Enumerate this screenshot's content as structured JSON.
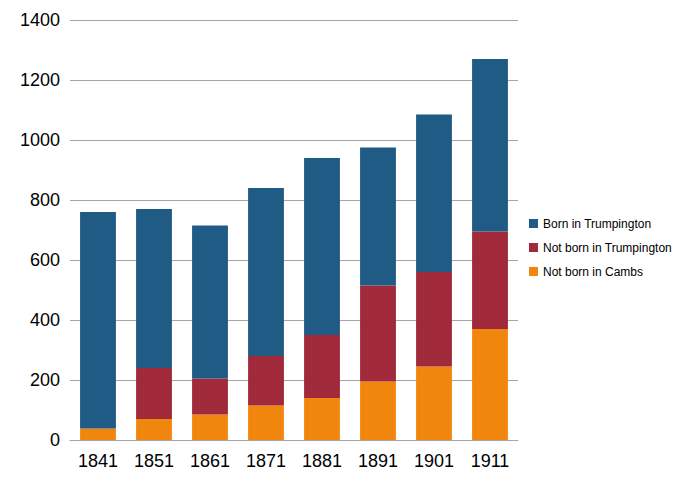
{
  "chart_data": {
    "type": "bar",
    "stacked": true,
    "grid": true,
    "legend": "right",
    "categories": [
      "1841",
      "1851",
      "1861",
      "1871",
      "1881",
      "1891",
      "1901",
      "1911"
    ],
    "series": [
      {
        "name": "Born in Trumpington",
        "color": "#1f5b84",
        "values": [
          722,
          530,
          510,
          560,
          590,
          460,
          525,
          575
        ]
      },
      {
        "name": "Not born in Trumpington",
        "color": "#a12a3a",
        "values": [
          0,
          170,
          120,
          165,
          210,
          320,
          315,
          325
        ]
      },
      {
        "name": "Not born in Cambs",
        "color": "#f0860e",
        "values": [
          38,
          70,
          85,
          115,
          140,
          195,
          245,
          370
        ]
      }
    ],
    "ylim": [
      0,
      1400
    ],
    "yticks": [
      0,
      200,
      400,
      600,
      800,
      1000,
      1200,
      1400
    ]
  }
}
